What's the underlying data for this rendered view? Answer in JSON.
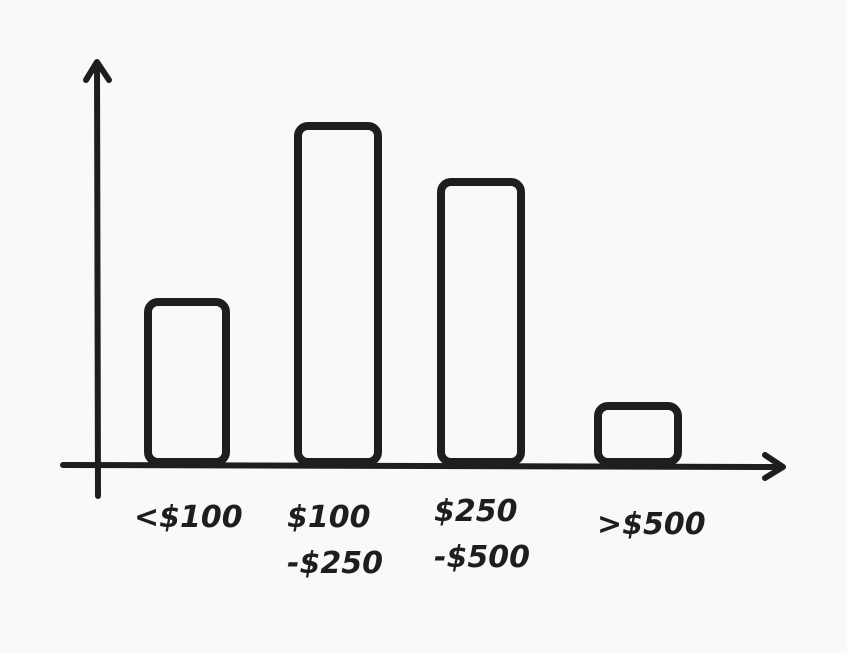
{
  "chart_data": {
    "type": "bar",
    "title": "",
    "xlabel": "",
    "ylabel": "",
    "categories": [
      {
        "lines": [
          "<$100"
        ]
      },
      {
        "lines": [
          "$100",
          "-$250"
        ]
      },
      {
        "lines": [
          "$250",
          "-$500"
        ]
      },
      {
        "lines": [
          ">$500"
        ]
      }
    ],
    "values": [
      4,
      8.4,
      7,
      1.4
    ],
    "ylim": [
      0,
      10
    ],
    "grid": false,
    "legend": "none",
    "tick_marks": false
  },
  "colors": {
    "background": "#f8f9fb",
    "ink": "#1e1e1e"
  }
}
